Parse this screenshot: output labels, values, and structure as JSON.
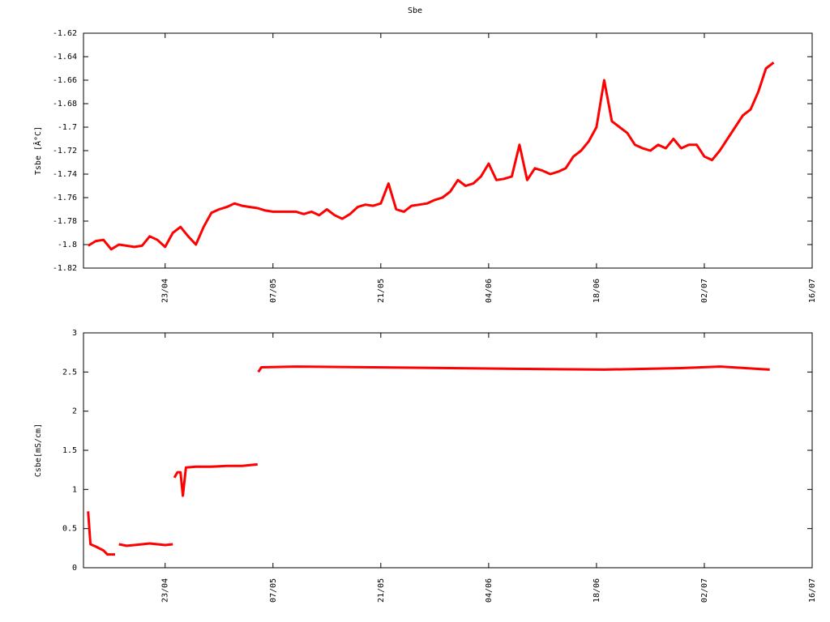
{
  "chart_data": [
    {
      "type": "line",
      "title": "Sbe",
      "y_label": "Tsbe [Â°C]",
      "xlim": [
        102.4,
        197
      ],
      "xticks": [
        {
          "value": 113,
          "label": "23/04"
        },
        {
          "value": 127,
          "label": "07/05"
        },
        {
          "value": 141,
          "label": "21/05"
        },
        {
          "value": 155,
          "label": "04/06"
        },
        {
          "value": 169,
          "label": "18/06"
        },
        {
          "value": 183,
          "label": "02/07"
        },
        {
          "value": 197,
          "label": "16/07"
        }
      ],
      "ylim": [
        -1.82,
        -1.62
      ],
      "yticks": [
        -1.82,
        -1.8,
        -1.78,
        -1.76,
        -1.74,
        -1.72,
        -1.7,
        -1.68,
        -1.66,
        -1.64,
        -1.62
      ],
      "x": [
        103,
        104,
        105,
        106,
        107,
        108,
        109,
        110,
        111,
        112,
        113,
        114,
        115,
        116,
        117,
        118,
        119,
        120,
        121,
        122,
        123,
        124,
        125,
        126,
        127,
        128,
        129,
        130,
        131,
        132,
        133,
        134,
        135,
        136,
        137,
        138,
        139,
        140,
        141,
        142,
        143,
        144,
        145,
        146,
        147,
        148,
        149,
        150,
        151,
        152,
        153,
        154,
        155,
        156,
        157,
        158,
        159,
        160,
        161,
        162,
        163,
        164,
        165,
        166,
        167,
        168,
        169,
        170,
        171,
        172,
        173,
        174,
        175,
        176,
        177,
        178,
        179,
        180,
        181,
        182,
        183,
        184,
        185,
        186,
        187,
        188,
        189,
        190,
        191,
        192
      ],
      "series": [
        {
          "name": "Tsbe",
          "color": "#ff0000",
          "values": [
            -1.801,
            -1.797,
            -1.796,
            -1.804,
            -1.8,
            -1.801,
            -1.802,
            -1.801,
            -1.793,
            -1.796,
            -1.802,
            -1.79,
            -1.785,
            -1.793,
            -1.8,
            -1.785,
            -1.773,
            -1.77,
            -1.768,
            -1.765,
            -1.767,
            -1.768,
            -1.769,
            -1.771,
            -1.772,
            -1.772,
            -1.772,
            -1.772,
            -1.774,
            -1.772,
            -1.775,
            -1.77,
            -1.775,
            -1.778,
            -1.774,
            -1.768,
            -1.766,
            -1.767,
            -1.765,
            -1.748,
            -1.77,
            -1.772,
            -1.767,
            -1.766,
            -1.765,
            -1.762,
            -1.76,
            -1.755,
            -1.745,
            -1.75,
            -1.748,
            -1.742,
            -1.731,
            -1.745,
            -1.744,
            -1.742,
            -1.715,
            -1.745,
            -1.735,
            -1.737,
            -1.74,
            -1.738,
            -1.735,
            -1.725,
            -1.72,
            -1.712,
            -1.7,
            -1.66,
            -1.695,
            -1.7,
            -1.705,
            -1.715,
            -1.718,
            -1.72,
            -1.715,
            -1.718,
            -1.71,
            -1.718,
            -1.715,
            -1.715,
            -1.725,
            -1.728,
            -1.72,
            -1.71,
            -1.7,
            -1.69,
            -1.685,
            -1.67,
            -1.65,
            -1.645
          ]
        }
      ]
    },
    {
      "type": "line",
      "y_label": "Csbe[mS/cm]",
      "xlim": [
        102.4,
        197
      ],
      "xticks": [
        {
          "value": 113,
          "label": "23/04"
        },
        {
          "value": 127,
          "label": "07/05"
        },
        {
          "value": 141,
          "label": "21/05"
        },
        {
          "value": 155,
          "label": "04/06"
        },
        {
          "value": 169,
          "label": "18/06"
        },
        {
          "value": 183,
          "label": "02/07"
        },
        {
          "value": 197,
          "label": "16/07"
        }
      ],
      "ylim": [
        0,
        3
      ],
      "yticks": [
        0,
        0.5,
        1,
        1.5,
        2,
        2.5,
        3
      ],
      "x": [
        103,
        103.3,
        104,
        105,
        105.5,
        106.5,
        106.8,
        107,
        108,
        109,
        110,
        111,
        112,
        113,
        114,
        114.1,
        114.2,
        114.6,
        115,
        115.3,
        115.7,
        117,
        119,
        121,
        123,
        125,
        125.05,
        125.1,
        125.5,
        130,
        140,
        150,
        160,
        170,
        180,
        185,
        191.5
      ],
      "series": [
        {
          "name": "Csbe",
          "color": "#ff0000",
          "values": [
            0.72,
            0.3,
            0.27,
            0.22,
            0.17,
            0.17,
            null,
            0.3,
            0.28,
            0.29,
            0.3,
            0.31,
            0.3,
            0.29,
            0.3,
            null,
            1.15,
            1.22,
            1.22,
            0.92,
            1.28,
            1.29,
            1.29,
            1.3,
            1.3,
            1.32,
            null,
            2.5,
            2.56,
            2.57,
            2.56,
            2.55,
            2.54,
            2.53,
            2.55,
            2.57,
            2.53
          ]
        }
      ]
    }
  ]
}
